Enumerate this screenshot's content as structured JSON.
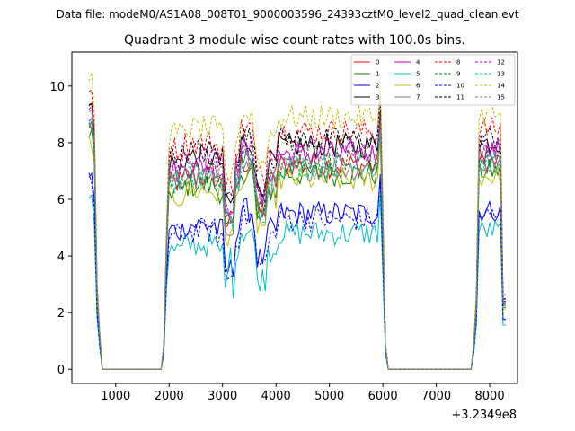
{
  "chart_data": {
    "type": "line",
    "suptitle": "Data file: modeM0/AS1A08_008T01_9000003596_24393cztM0_level2_quad_clean.evt",
    "title": "Quadrant 3 module wise count rates with 100.0s bins.",
    "xlabel": "",
    "ylabel": "",
    "x_offset_label": "+3.2349e8",
    "xlim": [
      180,
      8520
    ],
    "ylim": [
      -0.5,
      11.2
    ],
    "x_ticks": [
      1000,
      2000,
      3000,
      4000,
      5000,
      6000,
      7000,
      8000
    ],
    "y_ticks": [
      0,
      2,
      4,
      6,
      8,
      10
    ],
    "x_tick_labels": [
      "1000",
      "2000",
      "3000",
      "4000",
      "5000",
      "6000",
      "7000",
      "8000"
    ],
    "y_tick_labels": [
      "0",
      "2",
      "4",
      "6",
      "8",
      "10"
    ],
    "legend_position": "top-right",
    "series": [
      {
        "name": "0",
        "color": "#ff0000",
        "dash": "solid",
        "base": 7.6
      },
      {
        "name": "1",
        "color": "#008000",
        "dash": "solid",
        "base": 7.3
      },
      {
        "name": "2",
        "color": "#0000ff",
        "dash": "solid",
        "base": 5.9
      },
      {
        "name": "3",
        "color": "#000000",
        "dash": "solid",
        "base": 8.3
      },
      {
        "name": "4",
        "color": "#bf00bf",
        "dash": "solid",
        "base": 8.0
      },
      {
        "name": "5",
        "color": "#00bfbf",
        "dash": "solid",
        "base": 5.2
      },
      {
        "name": "6",
        "color": "#bfbf00",
        "dash": "solid",
        "base": 7.1
      },
      {
        "name": "7",
        "color": "#808080",
        "dash": "solid",
        "base": 7.5
      },
      {
        "name": "8",
        "color": "#ff0000",
        "dash": "dashed",
        "base": 8.8
      },
      {
        "name": "9",
        "color": "#008000",
        "dash": "dashed",
        "base": 7.7
      },
      {
        "name": "10",
        "color": "#0000ff",
        "dash": "dashed",
        "base": 5.7
      },
      {
        "name": "11",
        "color": "#000000",
        "dash": "dashed",
        "base": 8.5
      },
      {
        "name": "12",
        "color": "#bf00bf",
        "dash": "dashed",
        "base": 8.2
      },
      {
        "name": "13",
        "color": "#00bfbf",
        "dash": "dashed",
        "base": 7.6
      },
      {
        "name": "14",
        "color": "#bfbf00",
        "dash": "dashed",
        "base": 9.3
      },
      {
        "name": "15",
        "color": "#808080",
        "dash": "dashed",
        "base": 7.9
      }
    ]
  }
}
